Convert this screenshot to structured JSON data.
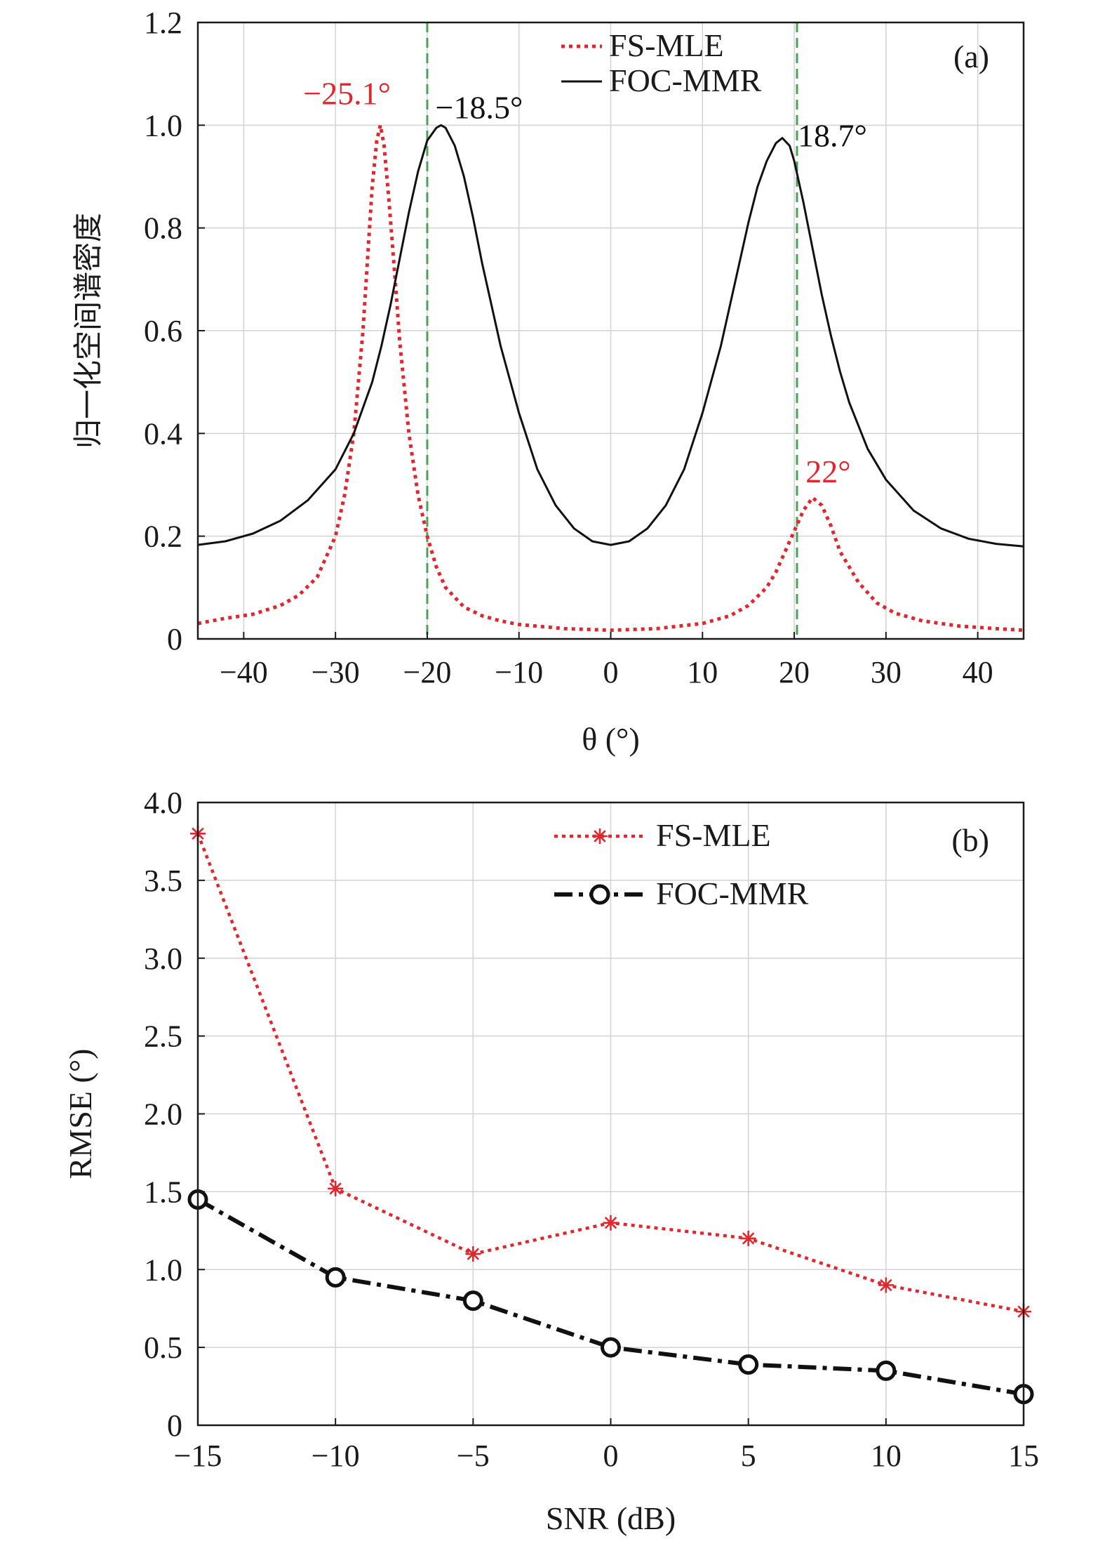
{
  "colors": {
    "fs_mle": "#e0272e",
    "foc_mmr": "#111111",
    "marker": "#4aa356",
    "grid": "#d3d3d3",
    "axis": "#1a1a1a"
  },
  "chart_data": [
    {
      "type": "line",
      "panel_label": "(a)",
      "title": "",
      "xlabel": "θ (°)",
      "ylabel": "归一化空间谱密度",
      "xlim": [
        -45,
        45
      ],
      "ylim": [
        0,
        1.2
      ],
      "xticks": [
        -40,
        -30,
        -20,
        -10,
        0,
        10,
        20,
        30,
        40
      ],
      "xtick_labels": [
        "−40",
        "−30",
        "−20",
        "−10",
        "0",
        "10",
        "20",
        "30",
        "40"
      ],
      "yticks": [
        0,
        0.2,
        0.4,
        0.6,
        0.8,
        1.0,
        1.2
      ],
      "ytick_labels": [
        "0",
        "0.2",
        "0.4",
        "0.6",
        "0.8",
        "1.0",
        "1.2"
      ],
      "grid": true,
      "legend_position": "top-right",
      "vertical_markers": [
        -20,
        20.3
      ],
      "series": [
        {
          "name": "FS-MLE",
          "style": "dotted",
          "x": [
            -45,
            -42,
            -39,
            -36,
            -34,
            -32,
            -30,
            -29,
            -28,
            -27,
            -26.5,
            -26,
            -25.5,
            -25.1,
            -24.7,
            -24.2,
            -23.5,
            -23,
            -22,
            -21,
            -20,
            -19,
            -18,
            -16,
            -14,
            -12,
            -10,
            -5,
            0,
            5,
            10,
            13,
            15,
            17,
            18,
            19,
            20,
            21,
            22,
            23,
            24,
            25,
            27,
            29,
            31,
            34,
            38,
            42,
            45
          ],
          "y": [
            0.03,
            0.04,
            0.048,
            0.065,
            0.085,
            0.12,
            0.2,
            0.28,
            0.4,
            0.6,
            0.74,
            0.88,
            0.97,
            1.0,
            0.96,
            0.86,
            0.7,
            0.58,
            0.4,
            0.28,
            0.2,
            0.14,
            0.1,
            0.062,
            0.045,
            0.035,
            0.028,
            0.02,
            0.017,
            0.02,
            0.03,
            0.045,
            0.065,
            0.1,
            0.13,
            0.17,
            0.21,
            0.25,
            0.275,
            0.26,
            0.22,
            0.17,
            0.11,
            0.07,
            0.05,
            0.035,
            0.025,
            0.02,
            0.017
          ]
        },
        {
          "name": "FOC-MMR",
          "style": "solid",
          "x": [
            -45,
            -42,
            -39,
            -36,
            -33,
            -30,
            -28,
            -26,
            -25,
            -24,
            -23,
            -22,
            -21,
            -20,
            -19,
            -18.5,
            -18,
            -17,
            -16,
            -15,
            -14,
            -12,
            -10,
            -8,
            -6,
            -4,
            -2,
            0,
            2,
            4,
            6,
            8,
            10,
            12,
            14,
            15,
            16,
            17,
            18,
            18.7,
            19.5,
            20,
            21,
            22,
            23,
            24,
            25,
            26,
            28,
            30,
            33,
            36,
            39,
            42,
            45
          ],
          "y": [
            0.183,
            0.19,
            0.205,
            0.23,
            0.27,
            0.33,
            0.4,
            0.5,
            0.57,
            0.65,
            0.74,
            0.83,
            0.91,
            0.97,
            0.995,
            1.0,
            0.995,
            0.96,
            0.9,
            0.82,
            0.73,
            0.57,
            0.44,
            0.33,
            0.26,
            0.215,
            0.19,
            0.183,
            0.19,
            0.215,
            0.26,
            0.33,
            0.44,
            0.57,
            0.73,
            0.81,
            0.88,
            0.93,
            0.965,
            0.975,
            0.96,
            0.93,
            0.85,
            0.76,
            0.67,
            0.59,
            0.52,
            0.46,
            0.37,
            0.31,
            0.25,
            0.215,
            0.195,
            0.185,
            0.18
          ]
        }
      ],
      "annotations": [
        {
          "text": "−25.1°",
          "x": -25.1,
          "y": 1.0,
          "series": "FS-MLE"
        },
        {
          "text": "−18.5°",
          "x": -18.5,
          "y": 1.0,
          "series": "FOC-MMR"
        },
        {
          "text": "18.7°",
          "x": 18.7,
          "y": 0.975,
          "series": "FOC-MMR"
        },
        {
          "text": "22°",
          "x": 22,
          "y": 0.275,
          "series": "FS-MLE"
        }
      ]
    },
    {
      "type": "line",
      "panel_label": "(b)",
      "title": "",
      "xlabel": "SNR (dB)",
      "ylabel": "RMSE (°)",
      "xlim": [
        -15,
        15
      ],
      "ylim": [
        0,
        4.0
      ],
      "xticks": [
        -15,
        -10,
        -5,
        0,
        5,
        10,
        15
      ],
      "xtick_labels": [
        "−15",
        "−10",
        "−5",
        "0",
        "5",
        "10",
        "15"
      ],
      "yticks": [
        0,
        0.5,
        1.0,
        1.5,
        2.0,
        2.5,
        3.0,
        3.5,
        4.0
      ],
      "ytick_labels": [
        "0",
        "0.5",
        "1.0",
        "1.5",
        "2.0",
        "2.5",
        "3.0",
        "3.5",
        "4.0"
      ],
      "grid": true,
      "legend_position": "top-right",
      "x": [
        -15,
        -10,
        -5,
        0,
        5,
        10,
        15
      ],
      "series": [
        {
          "name": "FS-MLE",
          "style": "dotted",
          "marker": "star",
          "values": [
            3.8,
            1.52,
            1.1,
            1.3,
            1.2,
            0.9,
            0.73
          ]
        },
        {
          "name": "FOC-MMR",
          "style": "dashdot",
          "marker": "circle",
          "values": [
            1.45,
            0.95,
            0.8,
            0.5,
            0.39,
            0.35,
            0.2
          ]
        }
      ]
    }
  ]
}
